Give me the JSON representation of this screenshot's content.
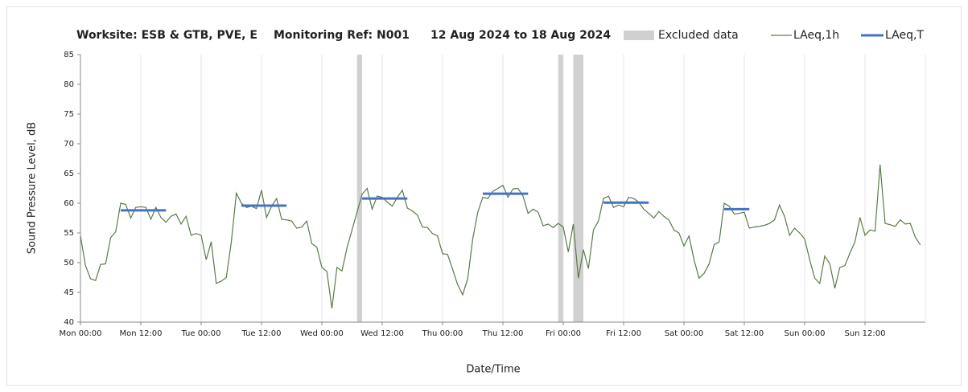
{
  "chart_data": {
    "type": "line",
    "title": "Worksite: ESB & GTB, PVE, E",
    "monitoring_ref": "Monitoring Ref: N001",
    "date_range": "12 Aug 2024 to 18 Aug 2024",
    "xlabel": "Date/Time",
    "ylabel": "Sound Pressure Level, dB",
    "xlim": [
      0,
      168
    ],
    "ylim": [
      40,
      85
    ],
    "yticks": [
      40,
      45,
      50,
      55,
      60,
      65,
      70,
      75,
      80,
      85
    ],
    "xticks": [
      {
        "value": 0,
        "label": "Mon 00:00"
      },
      {
        "value": 12,
        "label": "Mon 12:00"
      },
      {
        "value": 24,
        "label": "Tue 00:00"
      },
      {
        "value": 36,
        "label": "Tue 12:00"
      },
      {
        "value": 48,
        "label": "Wed 00:00"
      },
      {
        "value": 60,
        "label": "Wed 12:00"
      },
      {
        "value": 72,
        "label": "Thu 00:00"
      },
      {
        "value": 84,
        "label": "Thu 12:00"
      },
      {
        "value": 96,
        "label": "Fri 00:00"
      },
      {
        "value": 108,
        "label": "Fri 12:00"
      },
      {
        "value": 120,
        "label": "Sat 00:00"
      },
      {
        "value": 132,
        "label": "Sat 12:00"
      },
      {
        "value": 144,
        "label": "Sun 00:00"
      },
      {
        "value": 156,
        "label": "Sun 12:00"
      }
    ],
    "grid": true,
    "excluded": {
      "name": "Excluded data",
      "color": "#d0d0d0",
      "x_start": [
        55,
        95,
        98
      ],
      "x_end": [
        56,
        96,
        100
      ]
    },
    "series": [
      {
        "name": "LAeq,1h",
        "color": "#5a7a4a",
        "x": [
          0,
          1,
          2,
          3,
          4,
          5,
          6,
          7,
          8,
          9,
          10,
          11,
          12,
          13,
          14,
          15,
          16,
          17,
          18,
          19,
          20,
          21,
          22,
          23,
          24,
          25,
          26,
          27,
          28,
          29,
          30,
          31,
          32,
          33,
          34,
          35,
          36,
          37,
          38,
          39,
          40,
          41,
          42,
          43,
          44,
          45,
          46,
          47,
          48,
          49,
          50,
          51,
          52,
          53,
          54,
          55,
          56,
          57,
          58,
          59,
          60,
          61,
          62,
          63,
          64,
          65,
          66,
          67,
          68,
          69,
          70,
          71,
          72,
          73,
          74,
          75,
          76,
          77,
          78,
          79,
          80,
          81,
          82,
          83,
          84,
          85,
          86,
          87,
          88,
          89,
          90,
          91,
          92,
          93,
          94,
          95,
          96,
          97,
          98,
          99,
          100,
          101,
          102,
          103,
          104,
          105,
          106,
          107,
          108,
          109,
          110,
          111,
          112,
          113,
          114,
          115,
          116,
          117,
          118,
          119,
          120,
          121,
          122,
          123,
          124,
          125,
          126,
          127,
          128,
          129,
          130,
          131,
          132,
          133,
          134,
          135,
          136,
          137,
          138,
          139,
          140,
          141,
          142,
          143,
          144,
          145,
          146,
          147,
          148,
          149,
          150,
          151,
          152,
          153,
          154,
          155,
          156,
          157,
          158,
          159,
          160,
          161,
          162,
          163,
          164,
          165,
          166,
          167
        ],
        "values": [
          54.5,
          49.5,
          47.3,
          47,
          49.7,
          49.8,
          54.2,
          55.2,
          60,
          59.8,
          57.5,
          59.3,
          59.4,
          59.3,
          57.3,
          59.3,
          57.6,
          56.8,
          57.8,
          58.2,
          56.5,
          57.8,
          54.6,
          54.9,
          54.6,
          50.5,
          53.5,
          46.5,
          46.9,
          47.5,
          53.5,
          61.7,
          60,
          59.3,
          59.5,
          59.1,
          62.2,
          57.6,
          59.5,
          60.8,
          57.3,
          57.2,
          57,
          55.8,
          56,
          57,
          53.2,
          52.6,
          49.2,
          48.5,
          42.3,
          49.2,
          48.6,
          52.5,
          55.5,
          58.5,
          61.5,
          62.5,
          59,
          61.2,
          61,
          60.2,
          59.5,
          61,
          62.2,
          59.2,
          58.7,
          58,
          56,
          55.9,
          54.9,
          54.5,
          51.5,
          51.4,
          48.9,
          46.3,
          44.6,
          47.3,
          54,
          58.5,
          61,
          60.8,
          62,
          62.5,
          63,
          61,
          62.4,
          62.5,
          61.2,
          58.3,
          59,
          58.5,
          56.2,
          56.5,
          55.9,
          56.6,
          56,
          51.8,
          56.5,
          47.4,
          52.2,
          49,
          55.5,
          57,
          60.8,
          61.2,
          59.3,
          59.7,
          59.4,
          61,
          60.8,
          60.2,
          59,
          58.3,
          57.5,
          58.6,
          57.8,
          57.2,
          55.5,
          55,
          52.8,
          54.5,
          50.5,
          47.4,
          48.2,
          49.8,
          53,
          53.5,
          60,
          59.5,
          58.2,
          58.3,
          58.5,
          55.8,
          56,
          56.1,
          56.3,
          56.6,
          57.2,
          59.7,
          57.8,
          54.6,
          55.8,
          55,
          54,
          50.5,
          47.4,
          46.5,
          51.1,
          49.8,
          45.7,
          49.2,
          49.5,
          51.6,
          53.5,
          57.6,
          54.6,
          55.5,
          55.3,
          66.5,
          56.6,
          56.4,
          56.1,
          57.2,
          56.5,
          56.6,
          54.3,
          53
        ]
      },
      {
        "name": "LAeq,T",
        "color": "#4472c4",
        "x_start": [
          8,
          32,
          56,
          80,
          104,
          128
        ],
        "x_end": [
          17,
          41,
          65,
          89,
          113,
          133
        ],
        "values": [
          58.8,
          59.6,
          60.8,
          61.6,
          60.1,
          59.0
        ]
      }
    ]
  }
}
